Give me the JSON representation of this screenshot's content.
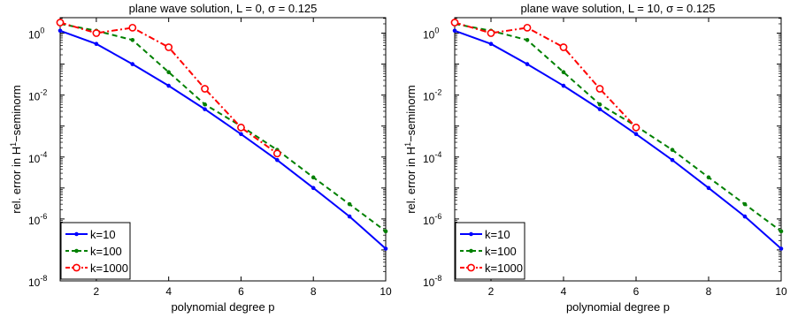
{
  "chart_data": [
    {
      "type": "line",
      "title": "plane wave solution, L = 0, σ = 0.125",
      "xlabel": "polynomial degree p",
      "ylabel_prefix": "rel. error in H",
      "ylabel_sup": "1",
      "ylabel_suffix": "−seminorm",
      "xlim": [
        1,
        10
      ],
      "ylim_exp": [
        -8,
        0.5
      ],
      "yscale": "log",
      "x_ticks": [
        2,
        4,
        6,
        8,
        10
      ],
      "y_tick_exps": [
        -8,
        -6,
        -4,
        -2,
        0
      ],
      "y_tick_base": "10",
      "legend_position": "bottom-left",
      "series": [
        {
          "name": "k=10",
          "color": "#0000ff",
          "style": "solid",
          "marker": "dot",
          "x": [
            1,
            2,
            3,
            4,
            5,
            6,
            7,
            8,
            9,
            10
          ],
          "y": [
            1.2,
            0.45,
            0.1,
            0.02,
            0.0035,
            0.00055,
            8e-05,
            1e-05,
            1.2e-06,
            1.1e-07
          ]
        },
        {
          "name": "k=100",
          "color": "#008000",
          "style": "dashed",
          "marker": "dot",
          "x": [
            1,
            2,
            3,
            4,
            5,
            6,
            7,
            8,
            9,
            10
          ],
          "y": [
            2.0,
            1.2,
            0.6,
            0.055,
            0.005,
            0.001,
            0.00017,
            2.2e-05,
            3e-06,
            4e-07
          ]
        },
        {
          "name": "k=1000",
          "color": "#ff0000",
          "style": "dashdot",
          "marker": "circle",
          "x": [
            1,
            2,
            3,
            4,
            5,
            6,
            7
          ],
          "y": [
            2.2,
            1.0,
            1.5,
            0.35,
            0.016,
            0.0009,
            0.00013
          ]
        }
      ]
    },
    {
      "type": "line",
      "title": "plane wave solution, L = 10, σ = 0.125",
      "xlabel": "polynomial degree p",
      "ylabel_prefix": "rel. error in H",
      "ylabel_sup": "1",
      "ylabel_suffix": "−seminorm",
      "xlim": [
        1,
        10
      ],
      "ylim_exp": [
        -8,
        0.5
      ],
      "yscale": "log",
      "x_ticks": [
        2,
        4,
        6,
        8,
        10
      ],
      "y_tick_exps": [
        -8,
        -6,
        -4,
        -2,
        0
      ],
      "y_tick_base": "10",
      "legend_position": "bottom-left",
      "series": [
        {
          "name": "k=10",
          "color": "#0000ff",
          "style": "solid",
          "marker": "dot",
          "x": [
            1,
            2,
            3,
            4,
            5,
            6,
            7,
            8,
            9,
            10
          ],
          "y": [
            1.2,
            0.45,
            0.1,
            0.02,
            0.0035,
            0.00055,
            8e-05,
            1e-05,
            1.2e-06,
            1.1e-07
          ]
        },
        {
          "name": "k=100",
          "color": "#008000",
          "style": "dashed",
          "marker": "dot",
          "x": [
            1,
            2,
            3,
            4,
            5,
            6,
            7,
            8,
            9,
            10
          ],
          "y": [
            2.0,
            1.2,
            0.6,
            0.055,
            0.005,
            0.001,
            0.00017,
            2.2e-05,
            3e-06,
            4e-07
          ]
        },
        {
          "name": "k=1000",
          "color": "#ff0000",
          "style": "dashdot",
          "marker": "circle",
          "x": [
            1,
            2,
            3,
            4,
            5,
            6
          ],
          "y": [
            2.2,
            1.0,
            1.5,
            0.35,
            0.016,
            0.0009
          ]
        }
      ]
    }
  ]
}
